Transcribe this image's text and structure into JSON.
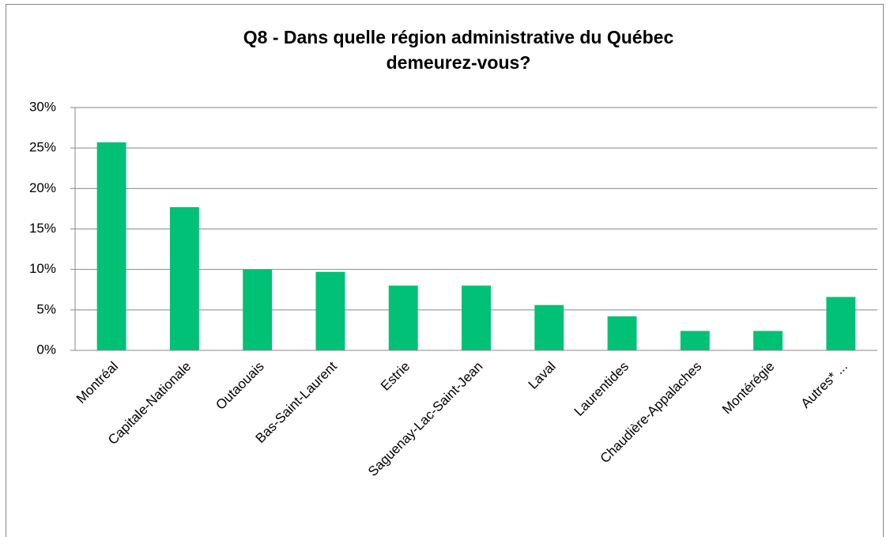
{
  "chart_data": {
    "type": "bar",
    "title": [
      "Q8 - Dans quelle région administrative du Québec",
      "demeurez-vous?"
    ],
    "categories": [
      "Montréal",
      "Capitale-Nationale",
      "Outaouais",
      "Bas-Saint-Laurent",
      "Estrie",
      "Saguenay-Lac-Saint-Jean",
      "Laval",
      "Laurentides",
      "Chaudière-Appalaches",
      "Montérégie",
      "Autres* ..."
    ],
    "values": [
      25.7,
      17.7,
      10.0,
      9.7,
      8.0,
      8.0,
      5.6,
      4.2,
      2.4,
      2.4,
      6.6
    ],
    "color": "#00c176",
    "ylim": [
      0,
      30
    ],
    "yticks": [
      {
        "value": 0,
        "label": "0%"
      },
      {
        "value": 5,
        "label": "5%"
      },
      {
        "value": 10,
        "label": "10%"
      },
      {
        "value": 15,
        "label": "15%"
      },
      {
        "value": 20,
        "label": "20%"
      },
      {
        "value": 25,
        "label": "25%"
      },
      {
        "value": 30,
        "label": "30%"
      }
    ],
    "grid": true
  }
}
